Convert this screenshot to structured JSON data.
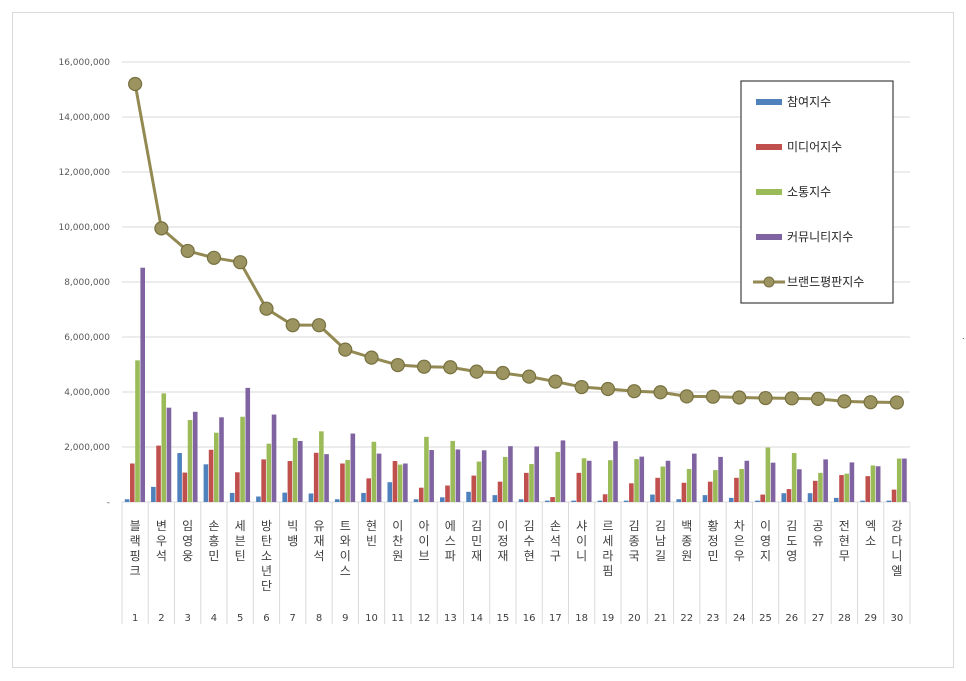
{
  "chart_data": {
    "type": "bar",
    "title": "",
    "xlabel": "",
    "ylabel": "",
    "ylim": [
      0,
      16000000
    ],
    "yticks": [
      "-",
      "2,000,000",
      "4,000,000",
      "6,000,000",
      "8,000,000",
      "10,000,000",
      "12,000,000",
      "14,000,000",
      "16,000,000"
    ],
    "grid": true,
    "legend_position": "top-right",
    "categories": [
      "블랙핑크",
      "변우석",
      "임영웅",
      "손흥민",
      "세븐틴",
      "방탄소년단",
      "빅뱅",
      "유재석",
      "트와이스",
      "현빈",
      "이찬원",
      "아이브",
      "에스파",
      "김민재",
      "이정재",
      "김수현",
      "손석구",
      "샤이니",
      "르세라핌",
      "김종국",
      "김남길",
      "백종원",
      "황정민",
      "차은우",
      "이영지",
      "김도영",
      "공유",
      "전현무",
      "엑소",
      "강다니엘"
    ],
    "ranks": [
      "1",
      "2",
      "3",
      "4",
      "5",
      "6",
      "7",
      "8",
      "9",
      "10",
      "11",
      "12",
      "13",
      "14",
      "15",
      "16",
      "17",
      "18",
      "19",
      "20",
      "21",
      "22",
      "23",
      "24",
      "25",
      "26",
      "27",
      "28",
      "29",
      "30"
    ],
    "series": [
      {
        "name": "참여지수",
        "kind": "bar",
        "color": "#4f81bd",
        "values": [
          100000,
          550000,
          1780000,
          1370000,
          330000,
          200000,
          340000,
          310000,
          100000,
          330000,
          720000,
          100000,
          170000,
          370000,
          250000,
          100000,
          50000,
          50000,
          50000,
          50000,
          270000,
          100000,
          250000,
          150000,
          50000,
          320000,
          320000,
          150000,
          50000,
          50000
        ]
      },
      {
        "name": "미디어지수",
        "kind": "bar",
        "color": "#c0504d",
        "values": [
          1400000,
          2050000,
          1070000,
          1900000,
          1080000,
          1550000,
          1490000,
          1790000,
          1400000,
          860000,
          1490000,
          520000,
          600000,
          960000,
          740000,
          1060000,
          180000,
          1060000,
          280000,
          680000,
          880000,
          700000,
          740000,
          880000,
          270000,
          470000,
          770000,
          980000,
          940000,
          450000
        ]
      },
      {
        "name": "소통지수",
        "kind": "bar",
        "color": "#9bbb59",
        "values": [
          5150000,
          3950000,
          2980000,
          2520000,
          3100000,
          2120000,
          2330000,
          2570000,
          1530000,
          2190000,
          1360000,
          2370000,
          2220000,
          1470000,
          1640000,
          1380000,
          1820000,
          1590000,
          1520000,
          1560000,
          1290000,
          1200000,
          1160000,
          1200000,
          1980000,
          1780000,
          1060000,
          1030000,
          1330000,
          1580000
        ]
      },
      {
        "name": "커뮤니티지수",
        "kind": "bar",
        "color": "#8064a2",
        "values": [
          8520000,
          3430000,
          3280000,
          3080000,
          4150000,
          3180000,
          2220000,
          1740000,
          2490000,
          1760000,
          1400000,
          1890000,
          1910000,
          1880000,
          2030000,
          2020000,
          2240000,
          1500000,
          2210000,
          1650000,
          1500000,
          1760000,
          1640000,
          1500000,
          1430000,
          1190000,
          1550000,
          1440000,
          1300000,
          1580000
        ]
      },
      {
        "name": "브랜드평판지수",
        "kind": "line",
        "color": "#938953",
        "values": [
          15200000,
          9950000,
          9130000,
          8880000,
          8720000,
          7030000,
          6430000,
          6430000,
          5540000,
          5250000,
          4980000,
          4920000,
          4900000,
          4740000,
          4690000,
          4560000,
          4380000,
          4180000,
          4110000,
          4030000,
          3990000,
          3840000,
          3830000,
          3800000,
          3780000,
          3770000,
          3750000,
          3660000,
          3630000,
          3620000
        ]
      }
    ]
  },
  "page": {
    "stray_mark": "."
  }
}
